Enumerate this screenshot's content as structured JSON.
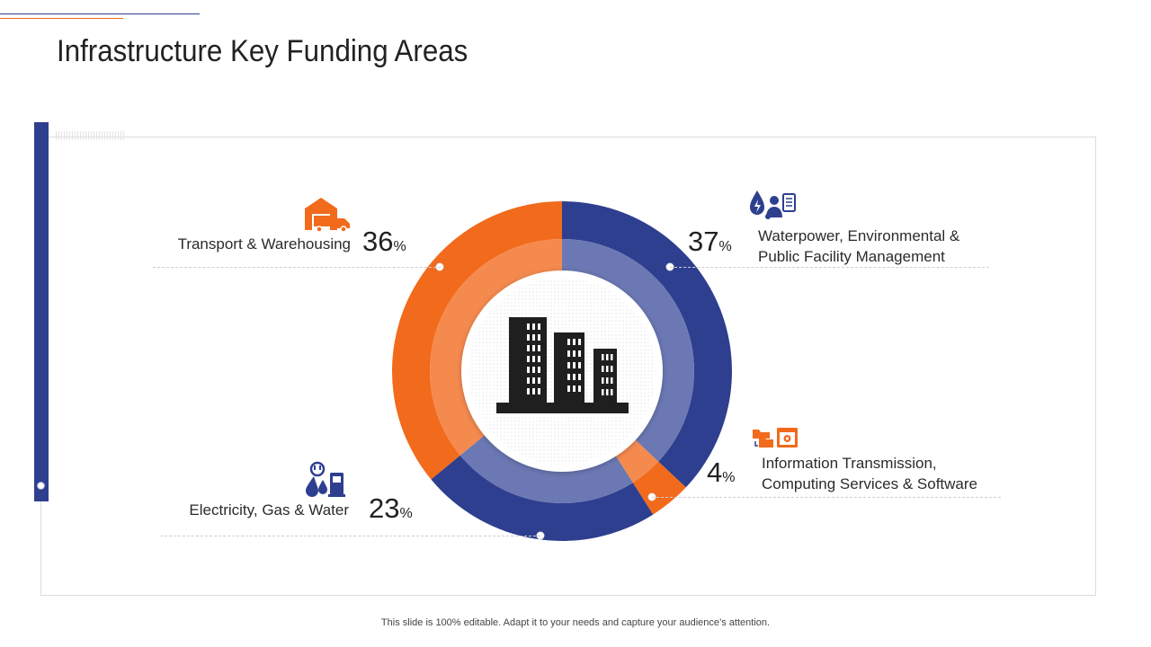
{
  "slide": {
    "title": "Infrastructure Key Funding Areas",
    "footer": "This slide is 100% editable. Adapt it to your needs and capture your audience’s attention."
  },
  "segments": [
    {
      "lines": [
        "Transport & Warehousing"
      ],
      "pct": "36",
      "unit": "%",
      "icon": "warehouse-truck-icon"
    },
    {
      "lines": [
        "Waterpower, Environmental &",
        "Public Facility Management"
      ],
      "pct": "37",
      "unit": "%",
      "icon": "water-person-clipboard-icon"
    },
    {
      "lines": [
        "Information Transmission,",
        "Computing Services & Software"
      ],
      "pct": "4",
      "unit": "%",
      "icon": "folder-computer-icon"
    },
    {
      "lines": [
        "Electricity, Gas & Water"
      ],
      "pct": "23",
      "unit": "%",
      "icon": "electricity-fuel-icon"
    }
  ],
  "center_icon": "office-buildings-icon",
  "colors": {
    "orange": "#f26a1b",
    "blue": "#2e3f8f",
    "orange_inner": "#f58a4f",
    "blue_inner": "#6b78b3"
  },
  "chart_data": {
    "type": "pie",
    "title": "Infrastructure Key Funding Areas",
    "categories": [
      "Waterpower, Environmental & Public Facility Management",
      "Information Transmission, Computing Services & Software",
      "Electricity, Gas & Water",
      "Transport & Warehousing"
    ],
    "values": [
      37,
      4,
      23,
      36
    ],
    "unit": "%",
    "colors": [
      "#2e3f8f",
      "#f26a1b",
      "#2e3f8f",
      "#f26a1b"
    ],
    "style": "donut",
    "legend": "none"
  }
}
